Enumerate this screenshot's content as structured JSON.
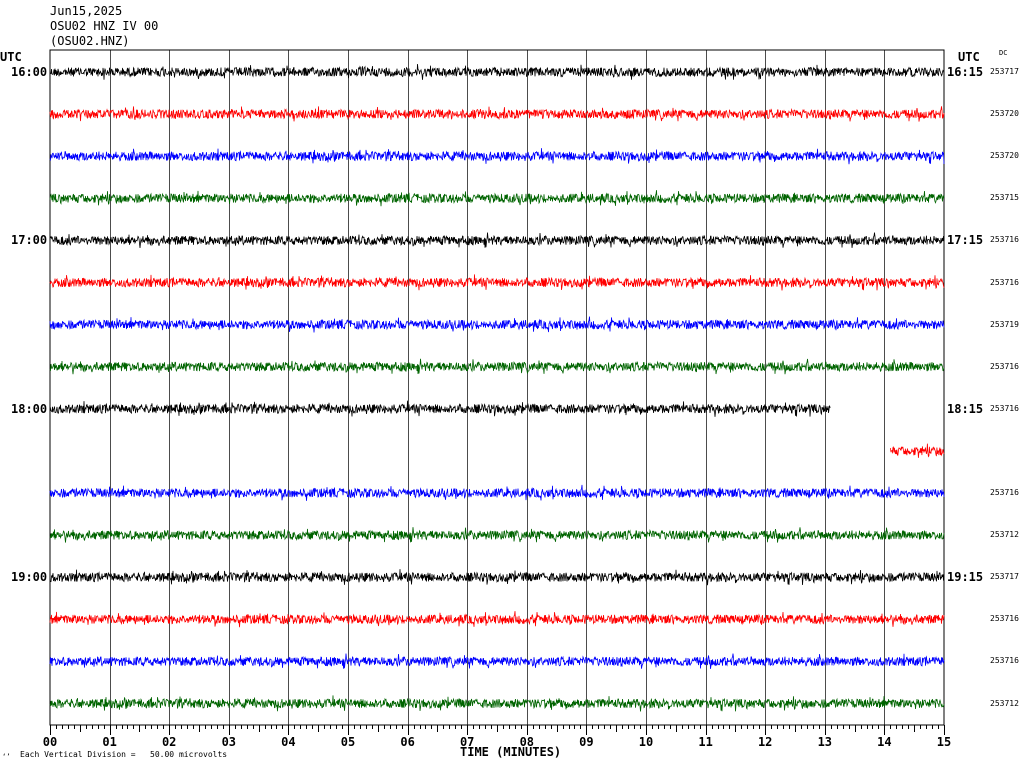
{
  "header": {
    "date": "Jun15,2025",
    "station": "OSU02 HNZ IV 00",
    "channel": "(OSU02.HNZ)"
  },
  "axis": {
    "utc_left": "UTC",
    "utc_right": "UTC",
    "dc_header": "DC",
    "xlabel": "TIME (MINUTES)",
    "footer": "Each Vertical Division =   50.00 microvolts",
    "corner_mark": "‘’"
  },
  "chart_data": {
    "type": "line",
    "title": "",
    "xlabel": "TIME (MINUTES)",
    "xlim": [
      0,
      15
    ],
    "x_ticks": [
      "00",
      "01",
      "02",
      "03",
      "04",
      "05",
      "06",
      "07",
      "08",
      "09",
      "10",
      "11",
      "12",
      "13",
      "14",
      "15"
    ],
    "grid": true,
    "trace_colors": [
      "#000000",
      "#ff0000",
      "#0000ff",
      "#006400"
    ],
    "rows": [
      {
        "left": "16:00",
        "right": "16:15",
        "dc": "253717",
        "start": 0,
        "end": 15
      },
      {
        "left": "",
        "right": "",
        "dc": "253720",
        "start": 0,
        "end": 15
      },
      {
        "left": "",
        "right": "",
        "dc": "253720",
        "start": 0,
        "end": 15
      },
      {
        "left": "",
        "right": "",
        "dc": "253715",
        "start": 0,
        "end": 15
      },
      {
        "left": "17:00",
        "right": "17:15",
        "dc": "253716",
        "start": 0,
        "end": 15
      },
      {
        "left": "",
        "right": "",
        "dc": "253716",
        "start": 0,
        "end": 15
      },
      {
        "left": "",
        "right": "",
        "dc": "253719",
        "start": 0,
        "end": 15
      },
      {
        "left": "",
        "right": "",
        "dc": "253716",
        "start": 0,
        "end": 15
      },
      {
        "left": "18:00",
        "right": "18:15",
        "dc": "253716",
        "start": 0,
        "end": 13.1
      },
      {
        "left": "",
        "right": "",
        "dc": "",
        "start": 14.1,
        "end": 15
      },
      {
        "left": "",
        "right": "",
        "dc": "253716",
        "start": 0,
        "end": 15
      },
      {
        "left": "",
        "right": "",
        "dc": "253712",
        "start": 0,
        "end": 15
      },
      {
        "left": "19:00",
        "right": "19:15",
        "dc": "253717",
        "start": 0,
        "end": 15
      },
      {
        "left": "",
        "right": "",
        "dc": "253716",
        "start": 0,
        "end": 15
      },
      {
        "left": "",
        "right": "",
        "dc": "253716",
        "start": 0,
        "end": 15
      },
      {
        "left": "",
        "right": "",
        "dc": "253712",
        "start": 0,
        "end": 15
      }
    ]
  }
}
